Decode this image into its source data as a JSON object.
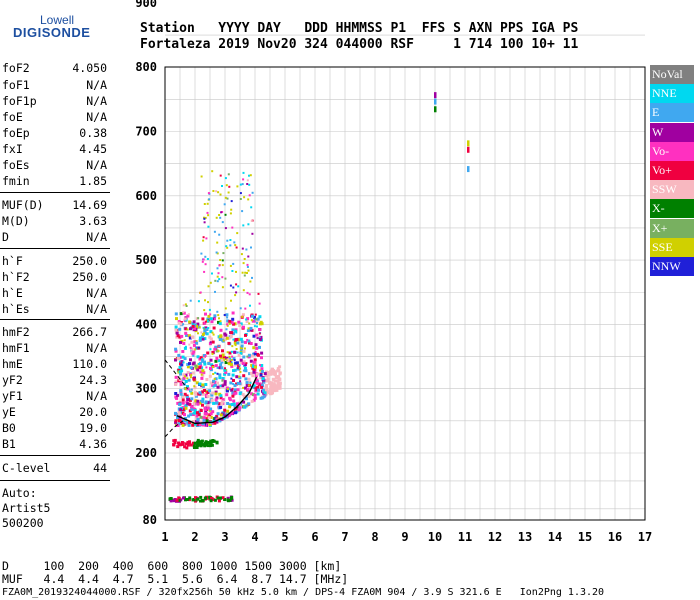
{
  "logo": {
    "line1": "Lowell",
    "line2": "DIGISONDE"
  },
  "header": {
    "row1": "Station   YYYY DAY   DDD HHMMSS P1  FFS S AXN PPS IGA PS",
    "row2": "Fortaleza 2019 Nov20 324 044000 RSF     1 714 100 10+ 11"
  },
  "params": [
    {
      "k": "foF2",
      "v": "4.050"
    },
    {
      "k": "foF1",
      "v": "N/A"
    },
    {
      "k": "foF1p",
      "v": "N/A"
    },
    {
      "k": "foE",
      "v": "N/A"
    },
    {
      "k": "foEp",
      "v": "0.38"
    },
    {
      "k": "fxI",
      "v": "4.45"
    },
    {
      "k": "foEs",
      "v": "N/A"
    },
    {
      "k": "fmin",
      "v": "1.85"
    },
    {
      "k": "MUF(D)",
      "v": "14.69"
    },
    {
      "k": "M(D)",
      "v": "3.63"
    },
    {
      "k": "D",
      "v": "N/A"
    },
    {
      "k": "h`F",
      "v": "250.0"
    },
    {
      "k": "h`F2",
      "v": "250.0"
    },
    {
      "k": "h`E",
      "v": "N/A"
    },
    {
      "k": "h`Es",
      "v": "N/A"
    },
    {
      "k": "hmF2",
      "v": "266.7"
    },
    {
      "k": "hmF1",
      "v": "N/A"
    },
    {
      "k": "hmE",
      "v": "110.0"
    },
    {
      "k": "yF2",
      "v": "24.3"
    },
    {
      "k": "yF1",
      "v": "N/A"
    },
    {
      "k": "yE",
      "v": "20.0"
    },
    {
      "k": "B0",
      "v": "19.0"
    },
    {
      "k": "B1",
      "v": "4.36"
    },
    {
      "k": "C-level",
      "v": "44"
    }
  ],
  "auto": {
    "line1": "Auto:",
    "line2": "Artist5",
    "line3": "500200"
  },
  "legend": [
    {
      "label": "NoVal",
      "color": "#808080"
    },
    {
      "label": "NNE",
      "color": "#00d8f0"
    },
    {
      "label": "E",
      "color": "#40a8f0"
    },
    {
      "label": "W",
      "color": "#a000a0"
    },
    {
      "label": "Vo-",
      "color": "#ff30c0"
    },
    {
      "label": "Vo+",
      "color": "#f00040"
    },
    {
      "label": "SSW",
      "color": "#f8b8c0"
    },
    {
      "label": "X-",
      "color": "#008000"
    },
    {
      "label": "X+",
      "color": "#78b060"
    },
    {
      "label": "SSE",
      "color": "#d0d000"
    },
    {
      "label": "NNW",
      "color": "#2020d8"
    }
  ],
  "footer": {
    "d_row": "D     100  200  400  600  800 1000 1500 3000 [km]",
    "muf_row": "MUF   4.4  4.4  4.7  5.1  5.6  6.4  8.7 14.7 [MHz]",
    "file_row": "FZA0M_2019324044000.RSF / 320fx256h 50 kHz 5.0 km / DPS-4 FZA0M 904 / 3.9 S 321.6 E   Ion2Png 1.3.20"
  },
  "chart_data": {
    "type": "scatter",
    "title": "",
    "xlabel": "",
    "ylabel": "",
    "xlim": [
      1,
      17
    ],
    "ylim": [
      80,
      900
    ],
    "xticks": [
      1,
      2,
      3,
      4,
      5,
      6,
      7,
      8,
      9,
      10,
      11,
      12,
      13,
      14,
      15,
      16,
      17
    ],
    "yticks": [
      80,
      200,
      300,
      400,
      500,
      600,
      700,
      800,
      900
    ],
    "grid": true,
    "clusters": [
      {
        "name": "F-trace",
        "xrange": [
          1.3,
          4.8
        ],
        "yrange": [
          235,
          420
        ],
        "count": 900
      },
      {
        "name": "spread-F",
        "xrange": [
          1.5,
          4.2
        ],
        "yrange": [
          300,
          640
        ],
        "count": 350
      },
      {
        "name": "low-echo",
        "xrange": [
          1.2,
          2.7
        ],
        "yrange": [
          210,
          222
        ],
        "count": 60
      },
      {
        "name": "ground",
        "xrange": [
          1.1,
          3.2
        ],
        "yrange": [
          116,
          124
        ],
        "count": 70
      }
    ],
    "isolated_points": [
      {
        "x": 10.0,
        "y": 755,
        "color": "#a000a0"
      },
      {
        "x": 10.0,
        "y": 745,
        "color": "#40a8f0"
      },
      {
        "x": 10.0,
        "y": 733,
        "color": "#008000"
      },
      {
        "x": 11.1,
        "y": 680,
        "color": "#d0d000"
      },
      {
        "x": 11.1,
        "y": 670,
        "color": "#f00040"
      },
      {
        "x": 11.1,
        "y": 640,
        "color": "#40a8f0"
      }
    ],
    "trace_line": [
      [
        1.4,
        258
      ],
      [
        2.0,
        246
      ],
      [
        2.6,
        248
      ],
      [
        3.0,
        256
      ],
      [
        3.4,
        272
      ],
      [
        3.8,
        293
      ],
      [
        4.05,
        318
      ]
    ],
    "dashed_line": [
      [
        1.0,
        345
      ],
      [
        1.25,
        330
      ],
      [
        1.5,
        315
      ],
      [
        1.75,
        300
      ]
    ],
    "dashed_line2": [
      [
        1.0,
        225
      ],
      [
        1.3,
        240
      ],
      [
        1.6,
        250
      ]
    ]
  }
}
